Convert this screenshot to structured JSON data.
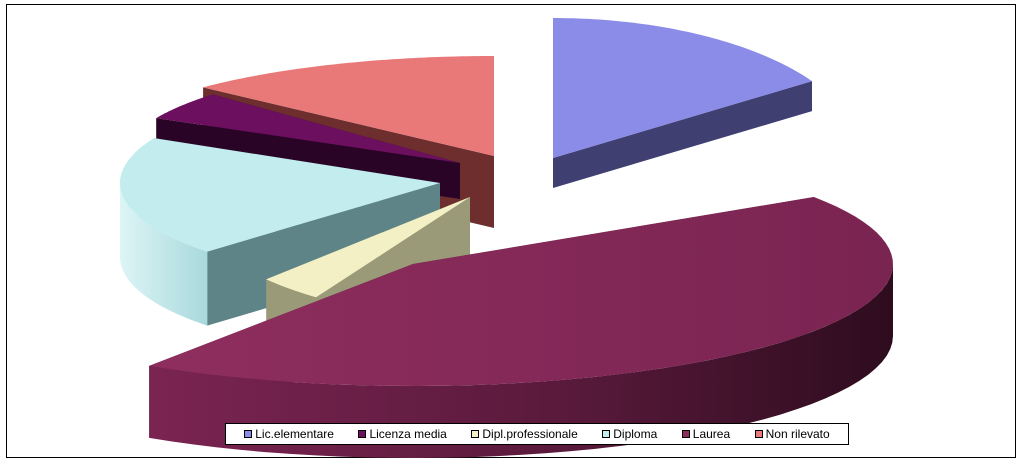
{
  "chart_data": {
    "type": "pie",
    "title": "",
    "three_d": true,
    "exploded": true,
    "slices": [
      {
        "label": "Lic.elementare",
        "value": 17.0,
        "color": "#8A8CE8"
      },
      {
        "label": "Laurea",
        "value": 47.0,
        "color": "#8A2D5C"
      },
      {
        "label": "Dipl.professionale",
        "value": 4.0,
        "color": "#F2F0C4"
      },
      {
        "label": "Diploma",
        "value": 21.0,
        "color": "#C2ECEE"
      },
      {
        "label": "Licenza media",
        "value": 5.0,
        "color": "#6B0F5E"
      },
      {
        "label": "Non rilevato",
        "value": 14.0,
        "color": "#E97878"
      }
    ],
    "legend": {
      "position": "bottom",
      "entries": [
        "Lic.elementare",
        "Licenza media",
        "Dipl.professionale",
        "Diploma",
        "Laurea",
        "Non rilevato"
      ]
    }
  }
}
